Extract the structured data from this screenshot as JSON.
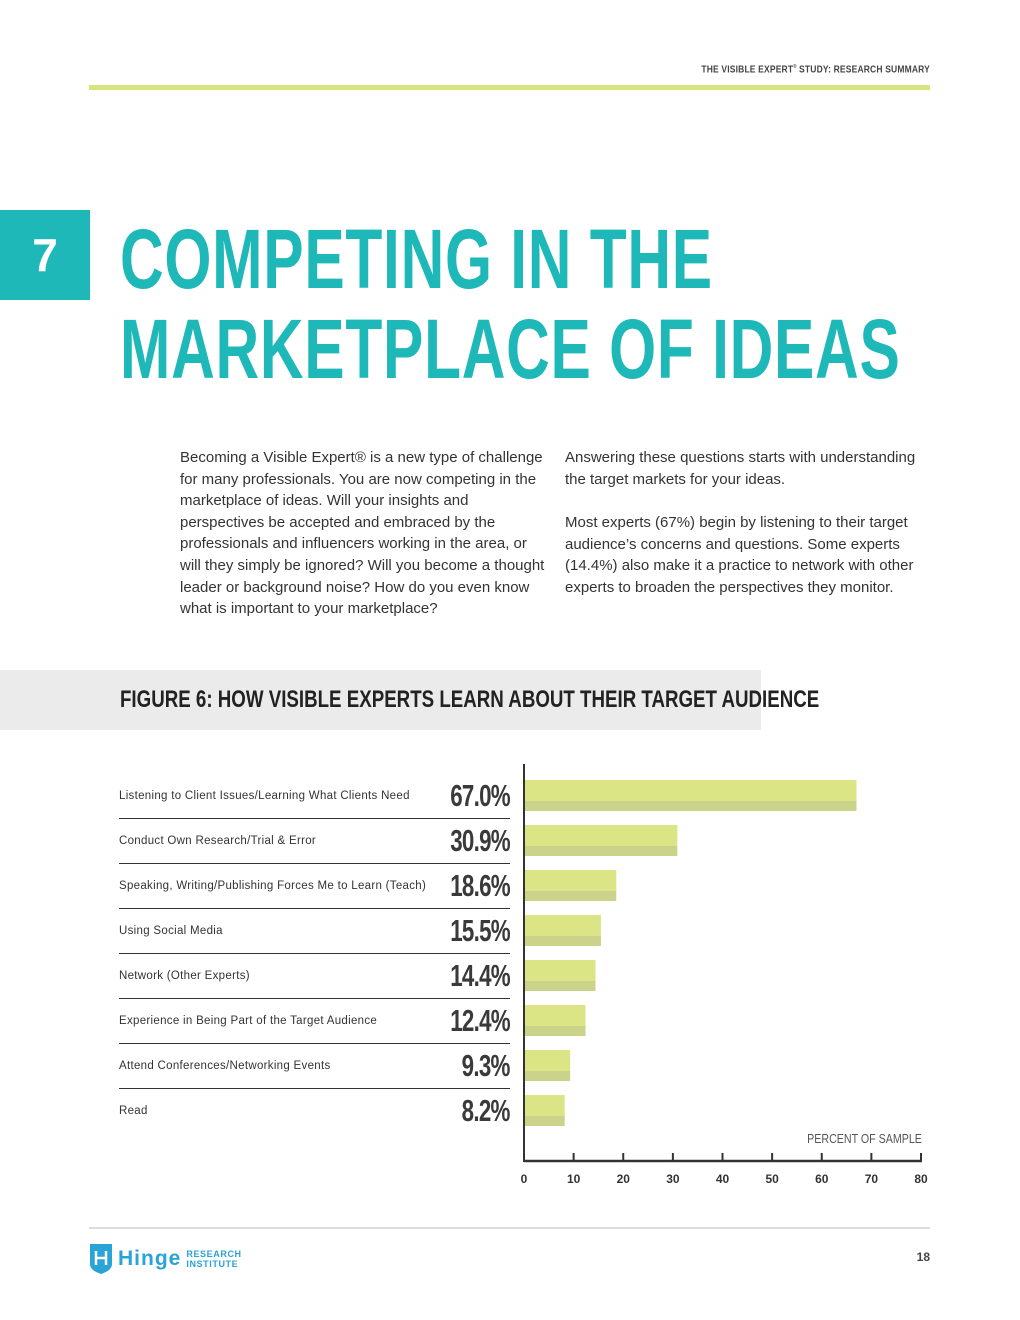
{
  "header": {
    "running_title": "THE VISIBLE EXPERT",
    "running_title_mark": "®",
    "running_title_rest": " STUDY: RESEARCH SUMMARY"
  },
  "section": {
    "number": "7",
    "title_line1": "COMPETING IN THE",
    "title_line2": "MARKETPLACE OF IDEAS"
  },
  "body": {
    "left": "Becoming a Visible Expert® is a new type of challenge for many professionals. You are now competing in the marketplace of ideas. Will your insights and perspectives be accepted and embraced by the professionals and influencers working in the area, or will they simply be ignored? Will you become a thought leader or background noise? How do you even know what is important to your marketplace?",
    "right_p1": "Answering these questions starts with understanding the target markets for your ideas.",
    "right_p2": "Most experts (67%) begin by listening to their target audience’s concerns and questions. Some experts (14.4%) also make it a practice to network with other experts to broaden the perspectives they monitor."
  },
  "figure": {
    "title": "FIGURE 6: HOW VISIBLE EXPERTS LEARN ABOUT THEIR TARGET AUDIENCE"
  },
  "chart_data": {
    "type": "bar",
    "orientation": "horizontal",
    "categories": [
      "Listening to Client Issues/Learning What Clients Need",
      "Conduct Own Research/Trial & Error",
      "Speaking, Writing/Publishing Forces Me to Learn (Teach)",
      "Using Social Media",
      "Network (Other Experts)",
      "Experience in Being Part of the Target Audience",
      "Attend Conferences/Networking Events",
      "Read"
    ],
    "values": [
      67.0,
      30.9,
      18.6,
      15.5,
      14.4,
      12.4,
      9.3,
      8.2
    ],
    "value_labels": [
      "67.0%",
      "30.9%",
      "18.6%",
      "15.5%",
      "14.4%",
      "12.4%",
      "9.3%",
      "8.2%"
    ],
    "xlabel": "PERCENT OF SAMPLE",
    "xlim": [
      0,
      80
    ],
    "xticks": [
      "0",
      "10",
      "20",
      "30",
      "40",
      "50",
      "60",
      "70",
      "80"
    ],
    "grid": false,
    "colors": {
      "bar": "#dce585",
      "bar_shade": "#cbd38a",
      "axis": "#333333"
    }
  },
  "footer": {
    "logo_word": "Hinge",
    "logo_sub1": "RESEARCH",
    "logo_sub2": "INSTITUTE",
    "page_number": "18"
  },
  "colors": {
    "accent": "#1fb8b8",
    "rule": "#d8e47f",
    "logo": "#2aa3d6"
  }
}
